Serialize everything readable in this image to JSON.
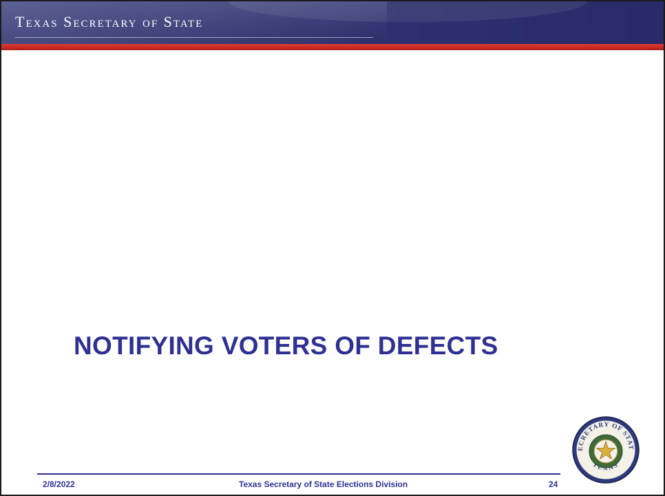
{
  "header": {
    "title": "Texas Secretary of State"
  },
  "slide": {
    "title": "NOTIFYING VOTERS OF DEFECTS"
  },
  "footer": {
    "date": "2/8/2022",
    "organization": "Texas Secretary of State Elections Division",
    "page_number": "24"
  },
  "seal": {
    "icon": "texas-secretary-of-state-seal-icon",
    "text": "SECRETARY OF STATE TEXAS"
  },
  "colors": {
    "header_blue": "#2e2f6e",
    "accent_red": "#c52a23",
    "title_blue": "#2e3193"
  }
}
